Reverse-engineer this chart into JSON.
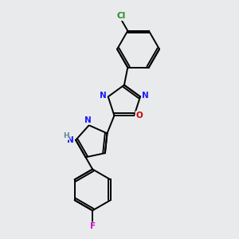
{
  "background_color": "#e8eaec",
  "bond_color": "#000000",
  "atom_colors": {
    "N": "#1a1aff",
    "O": "#cc0000",
    "Cl": "#228B22",
    "F": "#cc00cc",
    "H": "#5a8a8a"
  },
  "figsize": [
    3.0,
    3.0
  ],
  "dpi": 100,
  "lw": 1.4
}
